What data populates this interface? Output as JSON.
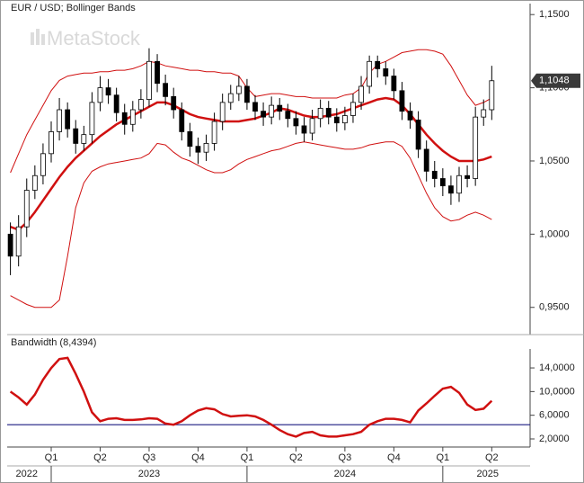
{
  "chart_data": [
    {
      "type": "candlestick",
      "title": "EUR / USD; Bollinger Bands",
      "watermark": "MetaStock",
      "open": [
        1.0,
        0.985,
        1.005,
        1.03,
        1.04,
        1.055,
        1.07,
        1.085,
        1.072,
        1.062,
        1.068,
        1.09,
        1.1,
        1.095,
        1.083,
        1.075,
        1.085,
        1.092,
        1.118,
        1.103,
        1.094,
        1.085,
        1.07,
        1.06,
        1.056,
        1.062,
        1.077,
        1.09,
        1.096,
        1.101,
        1.09,
        1.084,
        1.08,
        1.088,
        1.084,
        1.079,
        1.074,
        1.069,
        1.079,
        1.086,
        1.08,
        1.076,
        1.081,
        1.09,
        1.101,
        1.118,
        1.113,
        1.108,
        1.098,
        1.084,
        1.078,
        1.058,
        1.043,
        1.038,
        1.033,
        1.028,
        1.04,
        1.038,
        1.08,
        1.085
      ],
      "high": [
        1.008,
        1.013,
        1.038,
        1.047,
        1.062,
        1.077,
        1.093,
        1.09,
        1.078,
        1.074,
        1.097,
        1.108,
        1.106,
        1.1,
        1.089,
        1.091,
        1.099,
        1.127,
        1.123,
        1.109,
        1.1,
        1.09,
        1.076,
        1.066,
        1.068,
        1.083,
        1.096,
        1.102,
        1.108,
        1.106,
        1.095,
        1.09,
        1.094,
        1.093,
        1.089,
        1.084,
        1.08,
        1.085,
        1.092,
        1.091,
        1.086,
        1.087,
        1.096,
        1.108,
        1.122,
        1.122,
        1.118,
        1.113,
        1.104,
        1.09,
        1.084,
        1.064,
        1.05,
        1.045,
        1.04,
        1.046,
        1.047,
        1.087,
        1.092,
        1.115
      ],
      "low": [
        0.972,
        0.978,
        0.998,
        1.024,
        1.034,
        1.049,
        1.064,
        1.066,
        1.055,
        1.057,
        1.062,
        1.084,
        1.089,
        1.077,
        1.068,
        1.07,
        1.079,
        1.087,
        1.097,
        1.088,
        1.079,
        1.064,
        1.053,
        1.048,
        1.05,
        1.057,
        1.071,
        1.085,
        1.091,
        1.085,
        1.078,
        1.074,
        1.075,
        1.078,
        1.073,
        1.068,
        1.063,
        1.064,
        1.073,
        1.075,
        1.07,
        1.071,
        1.076,
        1.085,
        1.096,
        1.107,
        1.102,
        1.092,
        1.078,
        1.072,
        1.052,
        1.036,
        1.032,
        1.026,
        1.02,
        1.022,
        1.032,
        1.033,
        1.074,
        1.078
      ],
      "close": [
        0.985,
        1.005,
        1.03,
        1.04,
        1.055,
        1.07,
        1.085,
        1.072,
        1.062,
        1.068,
        1.09,
        1.1,
        1.095,
        1.083,
        1.075,
        1.085,
        1.092,
        1.118,
        1.103,
        1.094,
        1.085,
        1.07,
        1.06,
        1.056,
        1.062,
        1.077,
        1.09,
        1.096,
        1.101,
        1.09,
        1.084,
        1.08,
        1.088,
        1.084,
        1.079,
        1.074,
        1.069,
        1.079,
        1.086,
        1.08,
        1.076,
        1.081,
        1.09,
        1.101,
        1.118,
        1.113,
        1.108,
        1.098,
        1.084,
        1.078,
        1.058,
        1.043,
        1.038,
        1.033,
        1.028,
        1.04,
        1.038,
        1.08,
        1.085,
        1.1048
      ],
      "upper_band": [
        1.042,
        1.055,
        1.068,
        1.078,
        1.088,
        1.098,
        1.105,
        1.108,
        1.109,
        1.11,
        1.11,
        1.111,
        1.111,
        1.112,
        1.112,
        1.113,
        1.115,
        1.118,
        1.117,
        1.115,
        1.114,
        1.113,
        1.112,
        1.112,
        1.111,
        1.111,
        1.11,
        1.11,
        1.108,
        1.1,
        1.094,
        1.095,
        1.096,
        1.096,
        1.095,
        1.094,
        1.094,
        1.093,
        1.093,
        1.093,
        1.093,
        1.095,
        1.096,
        1.1,
        1.11,
        1.116,
        1.118,
        1.121,
        1.124,
        1.125,
        1.126,
        1.126,
        1.125,
        1.123,
        1.115,
        1.105,
        1.095,
        1.088,
        1.09,
        1.093
      ],
      "middle_band": [
        1.005,
        1.003,
        1.008,
        1.015,
        1.023,
        1.031,
        1.039,
        1.046,
        1.052,
        1.057,
        1.062,
        1.067,
        1.071,
        1.075,
        1.078,
        1.081,
        1.084,
        1.087,
        1.09,
        1.09,
        1.088,
        1.085,
        1.082,
        1.08,
        1.079,
        1.078,
        1.077,
        1.077,
        1.077,
        1.078,
        1.079,
        1.081,
        1.083,
        1.086,
        1.085,
        1.083,
        1.081,
        1.08,
        1.08,
        1.081,
        1.082,
        1.084,
        1.086,
        1.088,
        1.09,
        1.092,
        1.093,
        1.092,
        1.088,
        1.082,
        1.075,
        1.068,
        1.062,
        1.057,
        1.053,
        1.05,
        1.05,
        1.05,
        1.051,
        1.053
      ],
      "lower_band": [
        0.958,
        0.955,
        0.952,
        0.95,
        0.95,
        0.95,
        0.955,
        0.985,
        1.018,
        1.035,
        1.043,
        1.046,
        1.048,
        1.049,
        1.05,
        1.051,
        1.052,
        1.055,
        1.062,
        1.061,
        1.056,
        1.052,
        1.05,
        1.047,
        1.044,
        1.042,
        1.042,
        1.044,
        1.048,
        1.051,
        1.053,
        1.055,
        1.057,
        1.058,
        1.06,
        1.062,
        1.063,
        1.062,
        1.061,
        1.06,
        1.059,
        1.058,
        1.058,
        1.059,
        1.061,
        1.062,
        1.063,
        1.063,
        1.06,
        1.052,
        1.04,
        1.028,
        1.018,
        1.012,
        1.009,
        1.01,
        1.013,
        1.015,
        1.013,
        1.01
      ],
      "band_color": "#d01010",
      "up_color": "#ffffff",
      "down_color": "#000000",
      "last_price": {
        "value": 1.1048,
        "label": "1,1048"
      },
      "ylim": [
        0.9314,
        1.1575
      ],
      "yticks": [
        {
          "value": 0.95,
          "label": "0,9500"
        },
        {
          "value": 1.0,
          "label": "1,0000"
        },
        {
          "value": 1.05,
          "label": "1,0500"
        },
        {
          "value": 1.1,
          "label": "1,1000"
        },
        {
          "value": 1.15,
          "label": "1,1500"
        }
      ]
    },
    {
      "type": "line",
      "title": "Bandwidth (8,4394)",
      "categories": [
        null,
        null,
        null,
        null,
        null,
        "Q1",
        null,
        null,
        null,
        null,
        null,
        "Q2",
        null,
        null,
        null,
        null,
        null,
        "Q3",
        null,
        null,
        null,
        null,
        null,
        "Q4",
        null,
        null,
        null,
        null,
        null,
        "Q1",
        null,
        null,
        null,
        null,
        null,
        "Q2",
        null,
        null,
        null,
        null,
        null,
        "Q3",
        null,
        null,
        null,
        null,
        null,
        "Q4",
        null,
        null,
        null,
        null,
        null,
        "Q1",
        null,
        null,
        null,
        null,
        null,
        "Q2"
      ],
      "year_labels": [
        "2022",
        "2023",
        "2024",
        "2025"
      ],
      "values": [
        10.0,
        9.0,
        7.8,
        9.5,
        12.0,
        14.0,
        15.5,
        15.7,
        13.0,
        10.0,
        6.5,
        5.0,
        5.4,
        5.5,
        5.2,
        5.2,
        5.3,
        5.5,
        5.4,
        4.6,
        4.4,
        5.0,
        6.0,
        6.8,
        7.2,
        7.0,
        6.2,
        5.8,
        5.9,
        6.0,
        5.8,
        5.2,
        4.4,
        3.5,
        2.8,
        2.4,
        3.0,
        3.2,
        2.6,
        2.4,
        2.4,
        2.6,
        2.8,
        3.2,
        4.4,
        5.0,
        5.4,
        5.4,
        5.2,
        4.8,
        6.8,
        8.0,
        9.3,
        10.5,
        10.8,
        9.8,
        7.8,
        6.9,
        7.1,
        8.4394
      ],
      "color": "#d01010",
      "reference_line": 4.4,
      "reference_color": "#1a1a80",
      "ylim": [
        0.63,
        17.2
      ],
      "yticks": [
        {
          "value": 2,
          "label": "2,0000"
        },
        {
          "value": 6,
          "label": "6,0000"
        },
        {
          "value": 10,
          "label": "10,0000"
        },
        {
          "value": 14,
          "label": "14,0000"
        }
      ]
    }
  ]
}
